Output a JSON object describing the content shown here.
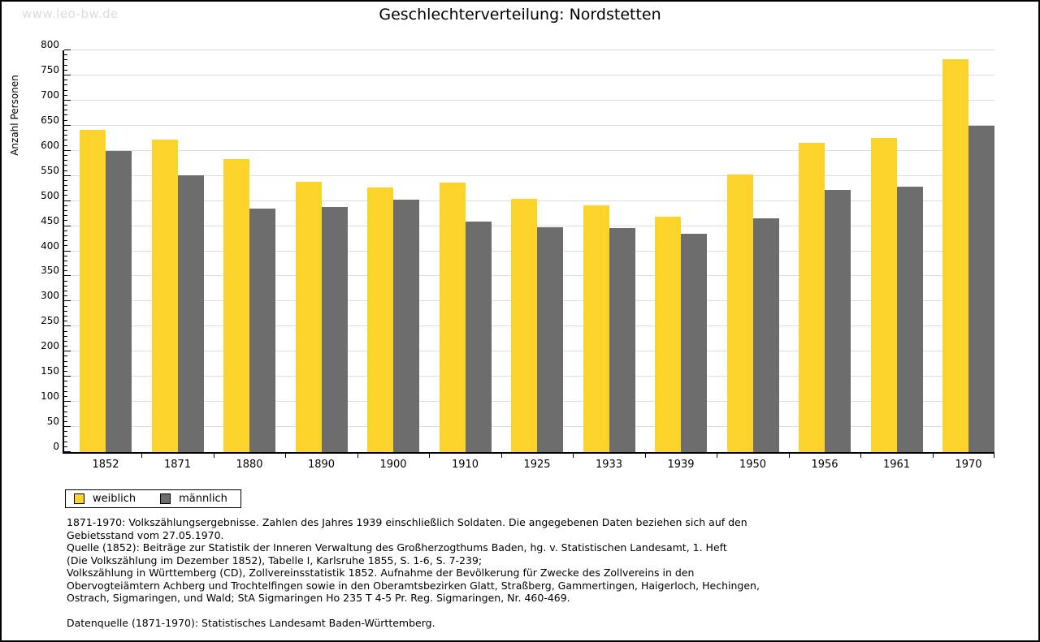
{
  "watermark": "www.leo-bw.de",
  "title": "Geschlechterverteilung: Nordstetten",
  "chart_data": {
    "type": "bar",
    "title": "Geschlechterverteilung: Nordstetten",
    "xlabel": "",
    "ylabel": "Anzahl Personen",
    "ylim": [
      0,
      800
    ],
    "ytick_step": 50,
    "ytick_minor_step": 10,
    "grid": true,
    "legend_position": "bottom-left",
    "categories": [
      "1852",
      "1871",
      "1880",
      "1890",
      "1900",
      "1910",
      "1925",
      "1933",
      "1939",
      "1950",
      "1956",
      "1961",
      "1970"
    ],
    "series": [
      {
        "name": "weiblich",
        "color": "#fcd32b",
        "values": [
          641,
          623,
          584,
          539,
          527,
          536,
          505,
          491,
          469,
          552,
          616,
          625,
          782
        ]
      },
      {
        "name": "männlich",
        "color": "#6d6d6d",
        "values": [
          599,
          551,
          485,
          488,
          503,
          459,
          448,
          446,
          434,
          466,
          522,
          529,
          650
        ]
      }
    ]
  },
  "legend": {
    "items": [
      {
        "label": "weiblich",
        "color": "#fcd32b"
      },
      {
        "label": "männlich",
        "color": "#6d6d6d"
      }
    ]
  },
  "footnotes": {
    "lines": [
      "1871-1970: Volkszählungsergebnisse. Zahlen des Jahres 1939 einschließlich Soldaten. Die angegebenen Daten beziehen sich auf den",
      "Gebietsstand vom 27.05.1970.",
      "Quelle (1852): Beiträge zur Statistik der Inneren Verwaltung des Großherzogthums Baden, hg. v. Statistischen Landesamt, 1. Heft",
      "(Die Volkszählung im Dezember 1852), Tabelle I, Karlsruhe 1855, S. 1-6, S. 7-239;",
      "Volkszählung in Württemberg (CD), Zollvereinsstatistik 1852. Aufnahme der Bevölkerung für Zwecke des Zollvereins in den",
      "Obervogteiämtern Achberg und Trochtelfingen sowie in den Oberamtsbezirken Glatt, Straßberg, Gammertingen, Haigerloch, Hechingen,",
      "Ostrach, Sigmaringen, und Wald; StA Sigmaringen Ho 235 T 4-5 Pr. Reg. Sigmaringen, Nr. 460-469."
    ],
    "datasource": "Datenquelle (1871-1970): Statistisches Landesamt Baden-Württemberg."
  }
}
